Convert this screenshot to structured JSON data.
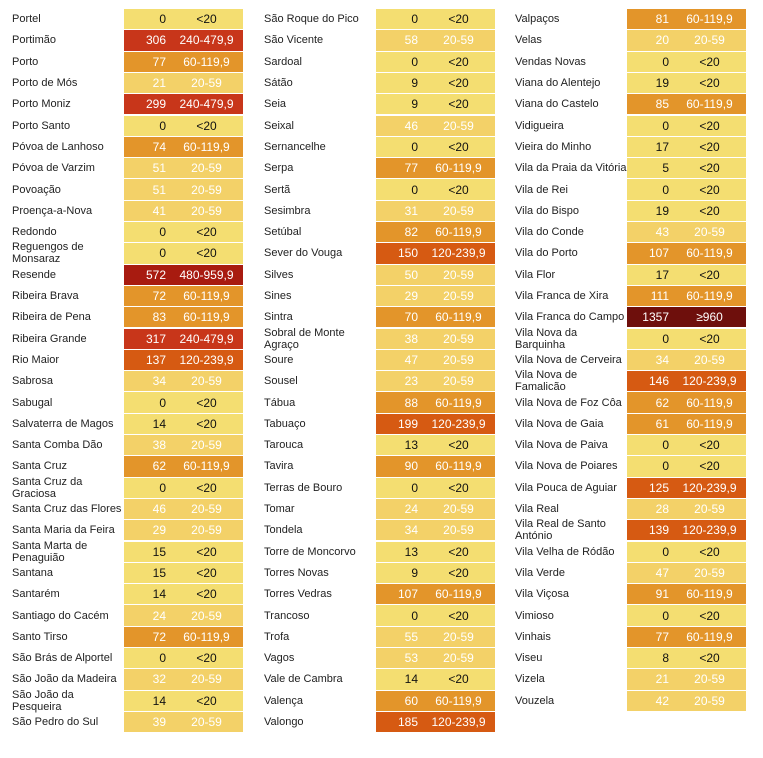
{
  "colors": {
    "<20": "#f4de71",
    "20-59": "#f3d168",
    "60-119,9": "#e3952a",
    "120-239,9": "#d65a12",
    "240-479,9": "#c8361a",
    "480-959,9": "#a81b10",
    "≥960": "#6e0f0c"
  },
  "columns": [
    [
      {
        "name": "Portel",
        "value": "0",
        "class": "<20"
      },
      {
        "name": "Portimão",
        "value": "306",
        "class": "240-479,9"
      },
      {
        "name": "Porto",
        "value": "77",
        "class": "60-119,9"
      },
      {
        "name": "Porto de Mós",
        "value": "21",
        "class": "20-59"
      },
      {
        "name": "Porto Moniz",
        "value": "299",
        "class": "240-479,9"
      },
      {
        "name": "Porto Santo",
        "value": "0",
        "class": "<20"
      },
      {
        "name": "Póvoa de Lanhoso",
        "value": "74",
        "class": "60-119,9"
      },
      {
        "name": "Póvoa de Varzim",
        "value": "51",
        "class": "20-59"
      },
      {
        "name": "Povoação",
        "value": "51",
        "class": "20-59"
      },
      {
        "name": "Proença-a-Nova",
        "value": "41",
        "class": "20-59"
      },
      {
        "name": "Redondo",
        "value": "0",
        "class": "<20"
      },
      {
        "name": "Reguengos de Monsaraz",
        "value": "0",
        "class": "<20"
      },
      {
        "name": "Resende",
        "value": "572",
        "class": "480-959,9"
      },
      {
        "name": "Ribeira Brava",
        "value": "72",
        "class": "60-119,9"
      },
      {
        "name": "Ribeira de Pena",
        "value": "83",
        "class": "60-119,9"
      },
      {
        "name": "Ribeira Grande",
        "value": "317",
        "class": "240-479,9"
      },
      {
        "name": "Rio Maior",
        "value": "137",
        "class": "120-239,9"
      },
      {
        "name": "Sabrosa",
        "value": "34",
        "class": "20-59"
      },
      {
        "name": "Sabugal",
        "value": "0",
        "class": "<20"
      },
      {
        "name": "Salvaterra de Magos",
        "value": "14",
        "class": "<20"
      },
      {
        "name": "Santa Comba Dão",
        "value": "38",
        "class": "20-59"
      },
      {
        "name": "Santa Cruz",
        "value": "62",
        "class": "60-119,9"
      },
      {
        "name": "Santa Cruz da Graciosa",
        "value": "0",
        "class": "<20"
      },
      {
        "name": "Santa Cruz das Flores",
        "value": "46",
        "class": "20-59"
      },
      {
        "name": "Santa Maria da Feira",
        "value": "29",
        "class": "20-59"
      },
      {
        "name": "Santa Marta de Penaguião",
        "value": "15",
        "class": "<20"
      },
      {
        "name": "Santana",
        "value": "15",
        "class": "<20"
      },
      {
        "name": "Santarém",
        "value": "14",
        "class": "<20"
      },
      {
        "name": "Santiago do Cacém",
        "value": "24",
        "class": "20-59"
      },
      {
        "name": "Santo Tirso",
        "value": "72",
        "class": "60-119,9"
      },
      {
        "name": "São Brás de Alportel",
        "value": "0",
        "class": "<20"
      },
      {
        "name": "São João da Madeira",
        "value": "32",
        "class": "20-59"
      },
      {
        "name": "São João da Pesqueira",
        "value": "14",
        "class": "<20"
      },
      {
        "name": "São Pedro do Sul",
        "value": "39",
        "class": "20-59"
      }
    ],
    [
      {
        "name": "São Roque do Pico",
        "value": "0",
        "class": "<20"
      },
      {
        "name": "São Vicente",
        "value": "58",
        "class": "20-59"
      },
      {
        "name": "Sardoal",
        "value": "0",
        "class": "<20"
      },
      {
        "name": "Sátão",
        "value": "9",
        "class": "<20"
      },
      {
        "name": "Seia",
        "value": "9",
        "class": "<20"
      },
      {
        "name": "Seixal",
        "value": "46",
        "class": "20-59"
      },
      {
        "name": "Sernancelhe",
        "value": "0",
        "class": "<20"
      },
      {
        "name": "Serpa",
        "value": "77",
        "class": "60-119,9"
      },
      {
        "name": "Sertã",
        "value": "0",
        "class": "<20"
      },
      {
        "name": "Sesimbra",
        "value": "31",
        "class": "20-59"
      },
      {
        "name": "Setúbal",
        "value": "82",
        "class": "60-119,9"
      },
      {
        "name": "Sever do Vouga",
        "value": "150",
        "class": "120-239,9"
      },
      {
        "name": "Silves",
        "value": "50",
        "class": "20-59"
      },
      {
        "name": "Sines",
        "value": "29",
        "class": "20-59"
      },
      {
        "name": "Sintra",
        "value": "70",
        "class": "60-119,9"
      },
      {
        "name": "Sobral de Monte Agraço",
        "value": "38",
        "class": "20-59"
      },
      {
        "name": "Soure",
        "value": "47",
        "class": "20-59"
      },
      {
        "name": "Sousel",
        "value": "23",
        "class": "20-59"
      },
      {
        "name": "Tábua",
        "value": "88",
        "class": "60-119,9"
      },
      {
        "name": "Tabuaço",
        "value": "199",
        "class": "120-239,9"
      },
      {
        "name": "Tarouca",
        "value": "13",
        "class": "<20"
      },
      {
        "name": "Tavira",
        "value": "90",
        "class": "60-119,9"
      },
      {
        "name": "Terras de Bouro",
        "value": "0",
        "class": "<20"
      },
      {
        "name": "Tomar",
        "value": "24",
        "class": "20-59"
      },
      {
        "name": "Tondela",
        "value": "34",
        "class": "20-59"
      },
      {
        "name": "Torre de Moncorvo",
        "value": "13",
        "class": "<20"
      },
      {
        "name": "Torres Novas",
        "value": "9",
        "class": "<20"
      },
      {
        "name": "Torres Vedras",
        "value": "107",
        "class": "60-119,9"
      },
      {
        "name": "Trancoso",
        "value": "0",
        "class": "<20"
      },
      {
        "name": "Trofa",
        "value": "55",
        "class": "20-59"
      },
      {
        "name": "Vagos",
        "value": "53",
        "class": "20-59"
      },
      {
        "name": "Vale de Cambra",
        "value": "14",
        "class": "<20"
      },
      {
        "name": "Valença",
        "value": "60",
        "class": "60-119,9"
      },
      {
        "name": "Valongo",
        "value": "185",
        "class": "120-239,9"
      }
    ],
    [
      {
        "name": "Valpaços",
        "value": "81",
        "class": "60-119,9"
      },
      {
        "name": "Velas",
        "value": "20",
        "class": "20-59"
      },
      {
        "name": "Vendas Novas",
        "value": "0",
        "class": "<20"
      },
      {
        "name": "Viana do Alentejo",
        "value": "19",
        "class": "<20"
      },
      {
        "name": "Viana do Castelo",
        "value": "85",
        "class": "60-119,9"
      },
      {
        "name": "Vidigueira",
        "value": "0",
        "class": "<20"
      },
      {
        "name": "Vieira do Minho",
        "value": "17",
        "class": "<20"
      },
      {
        "name": "Vila da Praia da Vitória",
        "value": "5",
        "class": "<20"
      },
      {
        "name": "Vila de Rei",
        "value": "0",
        "class": "<20"
      },
      {
        "name": "Vila do Bispo",
        "value": "19",
        "class": "<20"
      },
      {
        "name": "Vila do Conde",
        "value": "43",
        "class": "20-59"
      },
      {
        "name": "Vila do Porto",
        "value": "107",
        "class": "60-119,9"
      },
      {
        "name": "Vila Flor",
        "value": "17",
        "class": "<20"
      },
      {
        "name": "Vila Franca de Xira",
        "value": "111",
        "class": "60-119,9"
      },
      {
        "name": "Vila Franca do Campo",
        "value": "1357",
        "class": "≥960"
      },
      {
        "name": "Vila Nova da Barquinha",
        "value": "0",
        "class": "<20"
      },
      {
        "name": "Vila Nova de Cerveira",
        "value": "34",
        "class": "20-59"
      },
      {
        "name": "Vila Nova de Famalicão",
        "value": "146",
        "class": "120-239,9"
      },
      {
        "name": "Vila Nova de Foz Côa",
        "value": "62",
        "class": "60-119,9"
      },
      {
        "name": "Vila Nova de Gaia",
        "value": "61",
        "class": "60-119,9"
      },
      {
        "name": "Vila Nova de Paiva",
        "value": "0",
        "class": "<20"
      },
      {
        "name": "Vila Nova de Poiares",
        "value": "0",
        "class": "<20"
      },
      {
        "name": "Vila Pouca de Aguiar",
        "value": "125",
        "class": "120-239,9"
      },
      {
        "name": "Vila Real",
        "value": "28",
        "class": "20-59"
      },
      {
        "name": "Vila Real de Santo António",
        "value": "139",
        "class": "120-239,9"
      },
      {
        "name": "Vila Velha de Ródão",
        "value": "0",
        "class": "<20"
      },
      {
        "name": "Vila Verde",
        "value": "47",
        "class": "20-59"
      },
      {
        "name": "Vila Viçosa",
        "value": "91",
        "class": "60-119,9"
      },
      {
        "name": "Vimioso",
        "value": "0",
        "class": "<20"
      },
      {
        "name": "Vinhais",
        "value": "77",
        "class": "60-119,9"
      },
      {
        "name": "Viseu",
        "value": "8",
        "class": "<20"
      },
      {
        "name": "Vizela",
        "value": "21",
        "class": "20-59"
      },
      {
        "name": "Vouzela",
        "value": "42",
        "class": "20-59"
      }
    ]
  ]
}
